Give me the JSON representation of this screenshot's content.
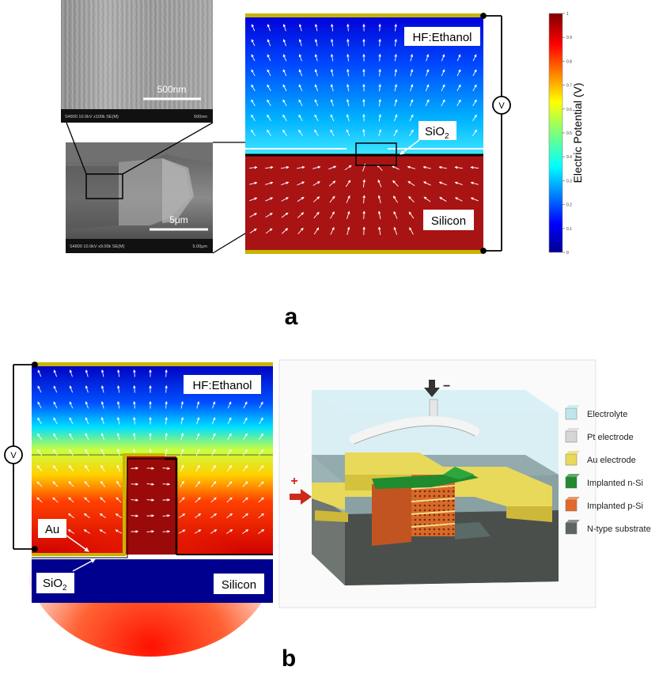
{
  "panel_a": {
    "panel_letter": "a",
    "sem_top": {
      "scale_label": "500nm",
      "info_left": "S4800 10.0kV x100k SE(M)",
      "info_right": "500nm"
    },
    "sem_bottom": {
      "scale_label": "5μm",
      "info_left": "S4800 10.0kV x9.00k SE(M)",
      "info_right": "5.00μm"
    },
    "labels": {
      "electrolyte": "HF:Ethanol",
      "oxide_base": "SiO",
      "oxide_sub": "2",
      "substrate": "Silicon",
      "meter": "V"
    },
    "colorbar": {
      "title": "Electric Potential (V)",
      "ticks": [
        "0",
        "0.1",
        "0.2",
        "0.3",
        "0.4",
        "0.5",
        "0.6",
        "0.7",
        "0.8",
        "0.9",
        "1"
      ],
      "min": 0,
      "max": 1
    }
  },
  "panel_b": {
    "panel_letter": "b",
    "labels": {
      "electrolyte": "HF:Ethanol",
      "metal": "Au",
      "oxide_base": "SiO",
      "oxide_sub": "2",
      "substrate": "Silicon",
      "meter": "V",
      "minus": "−",
      "plus": "+"
    },
    "legend": [
      {
        "label": "Electrolyte",
        "color": "#bfe6ec"
      },
      {
        "label": "Pt electrode",
        "color": "#d6d6d6"
      },
      {
        "label": "Au electrode",
        "color": "#e9d95a"
      },
      {
        "label": "Implanted n-Si",
        "color": "#1f8a2e"
      },
      {
        "label": "Implanted p-Si",
        "color": "#e2692a"
      },
      {
        "label": "N-type substrate",
        "color": "#5e6460"
      }
    ]
  },
  "colors": {
    "gold": "#c8b400",
    "deep_blue": "#00008f",
    "silicon_red": "#a81414"
  }
}
